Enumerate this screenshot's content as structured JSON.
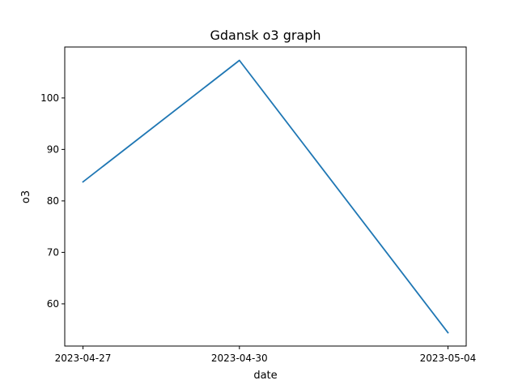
{
  "chart_data": {
    "type": "line",
    "title": "Gdansk o3 graph",
    "xlabel": "date",
    "ylabel": "o3",
    "x": [
      "2023-04-27",
      "2023-04-30",
      "2023-05-04"
    ],
    "series": [
      {
        "values": [
          83.7,
          107.3,
          54.4
        ],
        "color": "#1f77b4"
      }
    ],
    "yticks": [
      60,
      70,
      80,
      90,
      100
    ],
    "ylim": [
      51.8,
      109.9
    ],
    "grid": false,
    "legend": "none"
  }
}
